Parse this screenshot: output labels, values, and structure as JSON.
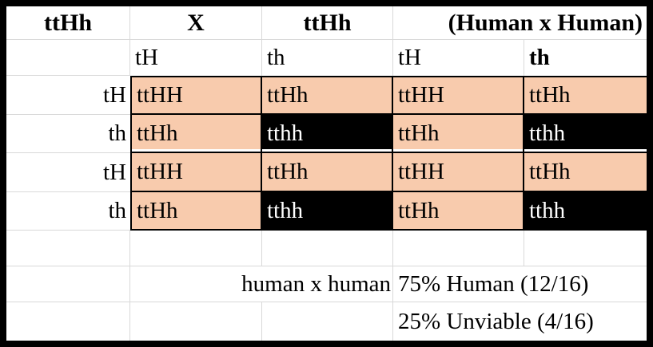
{
  "colors": {
    "viable_fill": "#F8CBAD",
    "unviable_fill": "#000000",
    "unviable_text": "#FFFFFF",
    "gridline": "#D9D9D9",
    "border_color": "#000000"
  },
  "punnett": {
    "parent1": "ttHh",
    "cross_symbol": "X",
    "parent2": "ttHh",
    "cross_title": "(Human x Human)",
    "father_gametes": [
      "tH",
      "th",
      "tH",
      "th"
    ],
    "mother_gametes": [
      "tH",
      "th",
      "tH",
      "th"
    ],
    "rows": [
      {
        "label": "tH",
        "cells": [
          {
            "genotype": "ttHH",
            "viable": true
          },
          {
            "genotype": "ttHh",
            "viable": true
          },
          {
            "genotype": "ttHH",
            "viable": true
          },
          {
            "genotype": "ttHh",
            "viable": true
          }
        ]
      },
      {
        "label": "th",
        "cells": [
          {
            "genotype": "ttHh",
            "viable": true
          },
          {
            "genotype": "tthh",
            "viable": false
          },
          {
            "genotype": "ttHh",
            "viable": true
          },
          {
            "genotype": "tthh",
            "viable": false
          }
        ]
      },
      {
        "label": "tH",
        "cells": [
          {
            "genotype": "ttHH",
            "viable": true
          },
          {
            "genotype": "ttHh",
            "viable": true
          },
          {
            "genotype": "ttHH",
            "viable": true
          },
          {
            "genotype": "ttHh",
            "viable": true
          }
        ]
      },
      {
        "label": "th",
        "cells": [
          {
            "genotype": "ttHh",
            "viable": true
          },
          {
            "genotype": "tthh",
            "viable": false
          },
          {
            "genotype": "ttHh",
            "viable": true
          },
          {
            "genotype": "tthh",
            "viable": false
          }
        ]
      }
    ],
    "summary": {
      "cross_text": "human x human",
      "result_line1": "75% Human (12/16)",
      "result_line2": "25% Unviable (4/16)"
    }
  }
}
